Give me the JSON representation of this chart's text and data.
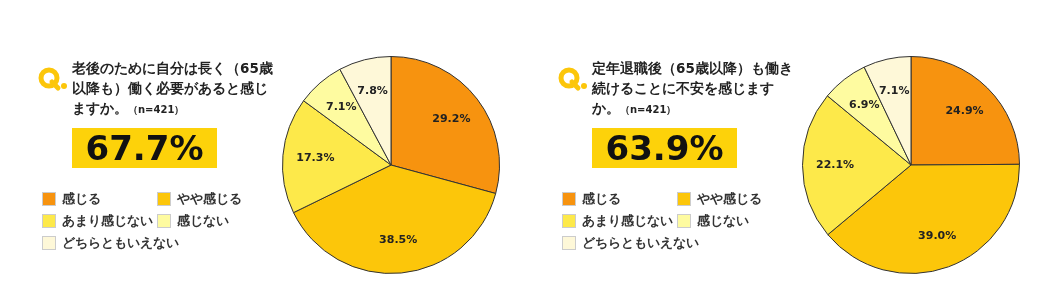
{
  "chart_data": [
    {
      "type": "pie",
      "title": "老後のために自分は長く（65歳以降も）働く必要があると感じますか。",
      "subtitle": "（n=421）",
      "annotations": [
        "67.7%"
      ],
      "categories": [
        "感じる",
        "やや感じる",
        "あまり感じない",
        "感じない",
        "どちらともいえない"
      ],
      "values": [
        29.2,
        38.5,
        17.3,
        7.1,
        7.8
      ],
      "value_labels": [
        "29.2%",
        "38.5%",
        "17.3%",
        "7.1%",
        "7.8%"
      ],
      "colors": [
        "#f7930f",
        "#fcc60a",
        "#fde94a",
        "#fefba0",
        "#fef8d8"
      ],
      "legend": "left"
    },
    {
      "type": "pie",
      "title": "定年退職後（65歳以降）も働き続けることに不安を感じますか。",
      "subtitle": "（n=421）",
      "annotations": [
        "63.9%"
      ],
      "categories": [
        "感じる",
        "やや感じる",
        "あまり感じない",
        "感じない",
        "どちらともいえない"
      ],
      "values": [
        24.9,
        39.0,
        22.1,
        6.9,
        7.1
      ],
      "value_labels": [
        "24.9%",
        "39.0%",
        "22.1%",
        "6.9%",
        "7.1%"
      ],
      "colors": [
        "#f7930f",
        "#fcc60a",
        "#fde94a",
        "#fefba0",
        "#fef8d8"
      ],
      "legend": "left"
    }
  ]
}
